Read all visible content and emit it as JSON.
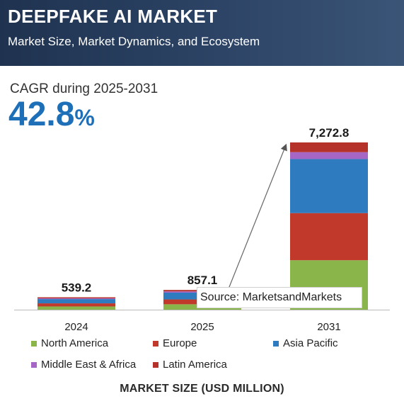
{
  "header": {
    "title": "DEEPFAKE AI MARKET",
    "subtitle": "Market Size, Market Dynamics, and Ecosystem"
  },
  "cagr": {
    "label": "CAGR during 2025-2031",
    "value": "42.8",
    "unit": "%"
  },
  "source": "Source: MarketsandMarkets",
  "colors": {
    "north_america": "#8ab54a",
    "europe": "#c0392b",
    "asia_pacific": "#2f7bbf",
    "middle_east_africa": "#a667c4",
    "latin_america": "#b5322a",
    "header_bg": "#1f3350",
    "cagr": "#1d6fb8"
  },
  "chart_data": {
    "type": "bar",
    "stacked": true,
    "categories": [
      "2024",
      "2025",
      "2031"
    ],
    "totals": [
      539.2,
      857.1,
      7272.8
    ],
    "total_labels": [
      "539.2",
      "857.1",
      "7,272.8"
    ],
    "series": [
      {
        "name": "North America",
        "values": [
          140,
          235,
          2150
        ],
        "color": "#8ab54a"
      },
      {
        "name": "Europe",
        "values": [
          135,
          210,
          2050
        ],
        "color": "#c0392b"
      },
      {
        "name": "Asia Pacific",
        "values": [
          185,
          295,
          2350
        ],
        "color": "#2f7bbf"
      },
      {
        "name": "Middle East & Africa",
        "values": [
          35,
          55,
          300
        ],
        "color": "#a667c4"
      },
      {
        "name": "Latin America",
        "values": [
          44.2,
          62.1,
          422.8
        ],
        "color": "#b5322a"
      }
    ],
    "xlabel": "MARKET SIZE (USD MILLION)",
    "ylabel": "",
    "ylim": [
      0,
      7500
    ],
    "grid": false,
    "legend_position": "bottom"
  }
}
